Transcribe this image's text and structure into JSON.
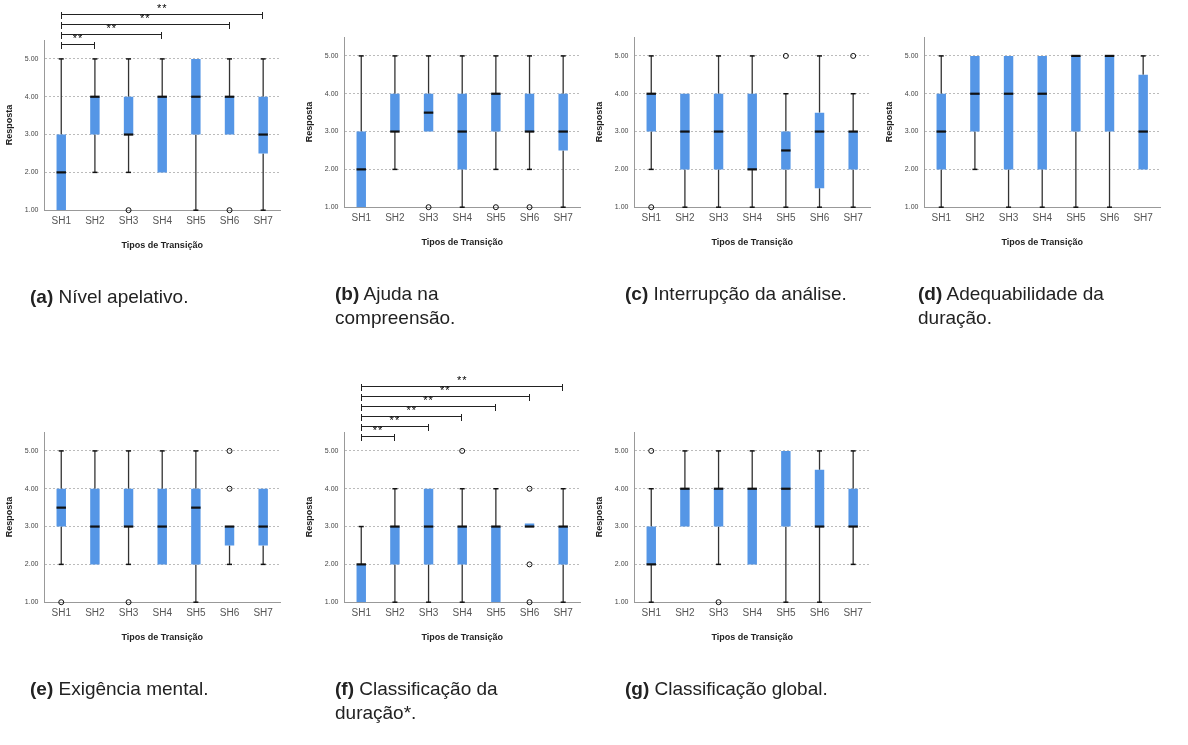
{
  "chart_data": [
    {
      "type": "box",
      "title": "(a) Nível apelativo.",
      "xlabel": "Tipos de Transição",
      "ylabel": "Resposta",
      "categories": [
        "SH1",
        "SH2",
        "SH3",
        "SH4",
        "SH5",
        "SH6",
        "SH7"
      ],
      "ylim": [
        1,
        5.5
      ],
      "yticks": [
        {
          "value": 1,
          "label": "1.00"
        },
        {
          "value": 2,
          "label": "2.00"
        },
        {
          "value": 3,
          "label": "3.00"
        },
        {
          "value": 4,
          "label": "4.00"
        },
        {
          "value": 5,
          "label": "5.00"
        }
      ],
      "grid": "y",
      "legend": false,
      "series": [
        {
          "color": "#5596e6",
          "boxes": [
            {
              "low": 1,
              "q1": 1,
              "median": 2,
              "q3": 3,
              "high": 5
            },
            {
              "low": 2,
              "q1": 3,
              "median": 4,
              "q3": 4,
              "high": 5
            },
            {
              "low": 2,
              "q1": 3,
              "median": 3,
              "q3": 4,
              "high": 5,
              "outliers": [
                1
              ]
            },
            {
              "low": 2,
              "q1": 2,
              "median": 4,
              "q3": 4,
              "high": 5
            },
            {
              "low": 1,
              "q1": 3,
              "median": 4,
              "q3": 5,
              "high": 5
            },
            {
              "low": 3,
              "q1": 3,
              "median": 4,
              "q3": 4,
              "high": 5,
              "outliers": [
                1
              ]
            },
            {
              "low": 1,
              "q1": 2.5,
              "median": 3,
              "q3": 4,
              "high": 5
            }
          ]
        }
      ],
      "annotations": [
        "**",
        "**",
        "**",
        "**"
      ]
    },
    {
      "type": "box",
      "title": "(b) Ajuda na compreensão.",
      "xlabel": "Tipos de Transição",
      "ylabel": "Resposta",
      "categories": [
        "SH1",
        "SH2",
        "SH3",
        "SH4",
        "SH5",
        "SH6",
        "SH7"
      ],
      "ylim": [
        1,
        5.5
      ],
      "yticks": [
        {
          "value": 1,
          "label": "1.00"
        },
        {
          "value": 2,
          "label": "2.00"
        },
        {
          "value": 3,
          "label": "3.00"
        },
        {
          "value": 4,
          "label": "4.00"
        },
        {
          "value": 5,
          "label": "5.00"
        }
      ],
      "grid": "y",
      "legend": false,
      "series": [
        {
          "color": "#5596e6",
          "boxes": [
            {
              "low": 1,
              "q1": 1,
              "median": 2,
              "q3": 3,
              "high": 5
            },
            {
              "low": 2,
              "q1": 3,
              "median": 3,
              "q3": 4,
              "high": 5
            },
            {
              "low": 3,
              "q1": 3,
              "median": 3.5,
              "q3": 4,
              "high": 5,
              "outliers": [
                1
              ]
            },
            {
              "low": 1,
              "q1": 2,
              "median": 3,
              "q3": 4,
              "high": 5
            },
            {
              "low": 2,
              "q1": 3,
              "median": 4,
              "q3": 4,
              "high": 5,
              "outliers": [
                1
              ]
            },
            {
              "low": 2,
              "q1": 3,
              "median": 3,
              "q3": 4,
              "high": 5,
              "outliers": [
                1
              ]
            },
            {
              "low": 1,
              "q1": 2.5,
              "median": 3,
              "q3": 4,
              "high": 5
            }
          ]
        }
      ]
    },
    {
      "type": "box",
      "title": "(c) Interrupção da análise.",
      "xlabel": "Tipos de Transição",
      "ylabel": "Resposta",
      "categories": [
        "SH1",
        "SH2",
        "SH3",
        "SH4",
        "SH5",
        "SH6",
        "SH7"
      ],
      "ylim": [
        1,
        5.5
      ],
      "yticks": [
        {
          "value": 1,
          "label": "1.00"
        },
        {
          "value": 2,
          "label": "2.00"
        },
        {
          "value": 3,
          "label": "3.00"
        },
        {
          "value": 4,
          "label": "4.00"
        },
        {
          "value": 5,
          "label": "5.00"
        }
      ],
      "grid": "y",
      "legend": false,
      "series": [
        {
          "color": "#5596e6",
          "boxes": [
            {
              "low": 2,
              "q1": 3,
              "median": 4,
              "q3": 4,
              "high": 5,
              "outliers": [
                1
              ]
            },
            {
              "low": 1,
              "q1": 2,
              "median": 3,
              "q3": 4,
              "high": 4
            },
            {
              "low": 1,
              "q1": 2,
              "median": 3,
              "q3": 4,
              "high": 5
            },
            {
              "low": 1,
              "q1": 2,
              "median": 2,
              "q3": 4,
              "high": 5
            },
            {
              "low": 1,
              "q1": 2,
              "median": 2.5,
              "q3": 3,
              "high": 4,
              "outliers": [
                5
              ]
            },
            {
              "low": 1,
              "q1": 1.5,
              "median": 3,
              "q3": 3.5,
              "high": 5
            },
            {
              "low": 1,
              "q1": 2,
              "median": 3,
              "q3": 3,
              "high": 4,
              "outliers": [
                5
              ]
            }
          ]
        }
      ]
    },
    {
      "type": "box",
      "title": "(d) Adequabilidade da duração.",
      "xlabel": "Tipos de Transição",
      "ylabel": "Resposta",
      "categories": [
        "SH1",
        "SH2",
        "SH3",
        "SH4",
        "SH5",
        "SH6",
        "SH7"
      ],
      "ylim": [
        1,
        5.5
      ],
      "yticks": [
        {
          "value": 1,
          "label": "1.00"
        },
        {
          "value": 2,
          "label": "2.00"
        },
        {
          "value": 3,
          "label": "3.00"
        },
        {
          "value": 4,
          "label": "4.00"
        },
        {
          "value": 5,
          "label": "5.00"
        }
      ],
      "grid": "y",
      "legend": false,
      "series": [
        {
          "color": "#5596e6",
          "boxes": [
            {
              "low": 1,
              "q1": 2,
              "median": 3,
              "q3": 4,
              "high": 5
            },
            {
              "low": 2,
              "q1": 3,
              "median": 4,
              "q3": 5,
              "high": 5
            },
            {
              "low": 1,
              "q1": 2,
              "median": 4,
              "q3": 5,
              "high": 5
            },
            {
              "low": 1,
              "q1": 2,
              "median": 4,
              "q3": 5,
              "high": 5
            },
            {
              "low": 1,
              "q1": 3,
              "median": 5,
              "q3": 5,
              "high": 5
            },
            {
              "low": 1,
              "q1": 3,
              "median": 5,
              "q3": 5,
              "high": 5
            },
            {
              "low": 2,
              "q1": 2,
              "median": 3,
              "q3": 4.5,
              "high": 5
            }
          ]
        }
      ]
    },
    {
      "type": "box",
      "title": "(e) Exigência mental.",
      "xlabel": "Tipos de Transição",
      "ylabel": "Resposta",
      "categories": [
        "SH1",
        "SH2",
        "SH3",
        "SH4",
        "SH5",
        "SH6",
        "SH7"
      ],
      "ylim": [
        1,
        5.5
      ],
      "yticks": [
        {
          "value": 1,
          "label": "1.00"
        },
        {
          "value": 2,
          "label": "2.00"
        },
        {
          "value": 3,
          "label": "3.00"
        },
        {
          "value": 4,
          "label": "4.00"
        },
        {
          "value": 5,
          "label": "5.00"
        }
      ],
      "grid": "y",
      "legend": false,
      "series": [
        {
          "color": "#5596e6",
          "boxes": [
            {
              "low": 2,
              "q1": 3,
              "median": 3.5,
              "q3": 4,
              "high": 5,
              "outliers": [
                1
              ]
            },
            {
              "low": 2,
              "q1": 2,
              "median": 3,
              "q3": 4,
              "high": 5
            },
            {
              "low": 2,
              "q1": 3,
              "median": 3,
              "q3": 4,
              "high": 5,
              "outliers": [
                1
              ]
            },
            {
              "low": 2,
              "q1": 2,
              "median": 3,
              "q3": 4,
              "high": 5
            },
            {
              "low": 1,
              "q1": 2,
              "median": 3.5,
              "q3": 4,
              "high": 5
            },
            {
              "low": 2,
              "q1": 2.5,
              "median": 3,
              "q3": 3,
              "high": 3,
              "outliers": [
                4,
                5
              ]
            },
            {
              "low": 2,
              "q1": 2.5,
              "median": 3,
              "q3": 4,
              "high": 4
            }
          ]
        }
      ]
    },
    {
      "type": "box",
      "title": "(f) Classificação da duração*.",
      "xlabel": "Tipos de Transição",
      "ylabel": "Resposta",
      "categories": [
        "SH1",
        "SH2",
        "SH3",
        "SH4",
        "SH5",
        "SH6",
        "SH7"
      ],
      "ylim": [
        1,
        5.5
      ],
      "yticks": [
        {
          "value": 1,
          "label": "1.00"
        },
        {
          "value": 2,
          "label": "2.00"
        },
        {
          "value": 3,
          "label": "3.00"
        },
        {
          "value": 4,
          "label": "4.00"
        },
        {
          "value": 5,
          "label": "5.00"
        }
      ],
      "grid": "y",
      "legend": false,
      "series": [
        {
          "color": "#5596e6",
          "boxes": [
            {
              "low": 1,
              "q1": 1,
              "median": 2,
              "q3": 2,
              "high": 3
            },
            {
              "low": 1,
              "q1": 2,
              "median": 3,
              "q3": 3,
              "high": 4
            },
            {
              "low": 1,
              "q1": 2,
              "median": 3,
              "q3": 4,
              "high": 4
            },
            {
              "low": 1,
              "q1": 2,
              "median": 3,
              "q3": 3,
              "high": 4,
              "outliers": [
                5
              ]
            },
            {
              "low": 1,
              "q1": 1,
              "median": 3,
              "q3": 3,
              "high": 4
            },
            {
              "low": 3,
              "q1": 3,
              "median": 3,
              "q3": 3,
              "high": 3,
              "outliers": [
                1,
                2,
                4
              ]
            },
            {
              "low": 1,
              "q1": 2,
              "median": 3,
              "q3": 3,
              "high": 4
            }
          ]
        }
      ],
      "annotations": [
        "**",
        "**",
        "**",
        "**",
        "**",
        "**"
      ]
    },
    {
      "type": "box",
      "title": "(g) Classificação global.",
      "xlabel": "Tipos de Transição",
      "ylabel": "Resposta",
      "categories": [
        "SH1",
        "SH2",
        "SH3",
        "SH4",
        "SH5",
        "SH6",
        "SH7"
      ],
      "ylim": [
        1,
        5.5
      ],
      "yticks": [
        {
          "value": 1,
          "label": "1.00"
        },
        {
          "value": 2,
          "label": "2.00"
        },
        {
          "value": 3,
          "label": "3.00"
        },
        {
          "value": 4,
          "label": "4.00"
        },
        {
          "value": 5,
          "label": "5.00"
        }
      ],
      "grid": "y",
      "legend": false,
      "series": [
        {
          "color": "#5596e6",
          "boxes": [
            {
              "low": 1,
              "q1": 2,
              "median": 2,
              "q3": 3,
              "high": 4,
              "outliers": [
                5
              ]
            },
            {
              "low": 3,
              "q1": 3,
              "median": 4,
              "q3": 4,
              "high": 5
            },
            {
              "low": 2,
              "q1": 3,
              "median": 4,
              "q3": 4,
              "high": 5,
              "outliers": [
                1
              ]
            },
            {
              "low": 2,
              "q1": 2,
              "median": 4,
              "q3": 4,
              "high": 5
            },
            {
              "low": 1,
              "q1": 3,
              "median": 4,
              "q3": 5,
              "high": 5
            },
            {
              "low": 1,
              "q1": 3,
              "median": 3,
              "q3": 4.5,
              "high": 5
            },
            {
              "low": 2,
              "q1": 3,
              "median": 3,
              "q3": 4,
              "high": 5
            }
          ]
        }
      ]
    }
  ]
}
